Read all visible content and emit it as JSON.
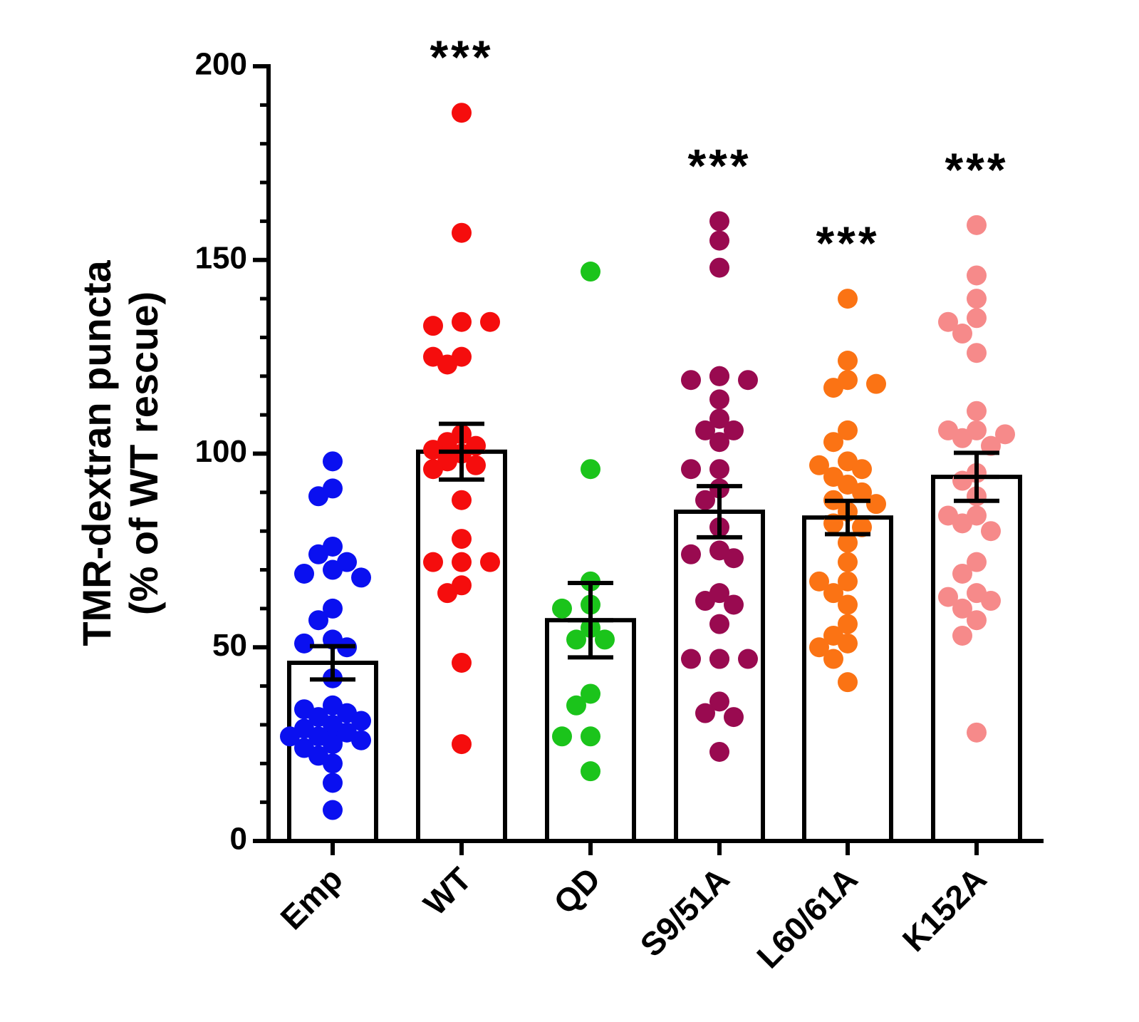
{
  "chart_data": {
    "type": "bar",
    "title": "",
    "xlabel": "",
    "ylabel_line1": "TMR-dextran puncta",
    "ylabel_line2": "(% of WT rescue)",
    "ylim": [
      0,
      200
    ],
    "yticks": [
      0,
      50,
      100,
      150,
      200
    ],
    "minor_tick_step": 10,
    "grid": false,
    "legend": "none",
    "categories": [
      "Emp",
      "WT",
      "QD",
      "S9/51A",
      "L60/61A",
      "K152A"
    ],
    "means": [
      46,
      100.5,
      57,
      85,
      83.5,
      94
    ],
    "sem": [
      4.3,
      7.2,
      9.6,
      6.6,
      4.3,
      6.2
    ],
    "significance": [
      "",
      "***",
      "",
      "***",
      "***",
      "***"
    ],
    "colors": [
      "#0a10f0",
      "#f50d0d",
      "#1bc41b",
      "#990a50",
      "#fb7314",
      "#f68a8a"
    ],
    "points": [
      [
        98,
        91,
        89,
        76,
        74,
        72,
        70,
        69,
        68,
        60,
        57,
        52,
        51,
        50,
        42,
        35,
        34,
        33,
        32,
        31,
        30,
        29,
        28,
        27,
        27,
        26,
        26,
        25,
        24,
        22,
        20,
        15,
        8
      ],
      [
        188,
        157,
        134,
        133,
        134,
        125,
        123,
        125,
        105,
        103,
        102,
        101,
        100,
        98,
        97,
        96,
        88,
        78,
        72,
        72,
        72,
        66,
        64,
        46,
        25
      ],
      [
        147,
        96,
        67,
        61,
        60,
        55,
        52,
        52,
        38,
        35,
        27,
        27,
        18
      ],
      [
        160,
        155,
        148,
        120,
        119,
        119,
        120,
        114,
        109,
        106,
        106,
        103,
        96,
        96,
        91,
        88,
        81,
        75,
        74,
        73,
        64,
        62,
        61,
        56,
        47,
        47,
        47,
        47,
        36,
        33,
        32,
        23
      ],
      [
        140,
        124,
        119,
        117,
        118,
        106,
        103,
        98,
        97,
        96,
        94,
        92,
        90,
        88,
        87,
        85,
        82,
        81,
        77,
        72,
        67,
        67,
        64,
        61,
        56,
        53,
        51,
        50,
        47,
        41
      ],
      [
        159,
        146,
        140,
        135,
        134,
        131,
        126,
        111,
        106,
        106,
        105,
        104,
        102,
        95,
        93,
        89,
        84,
        84,
        82,
        80,
        72,
        69,
        64,
        63,
        62,
        60,
        57,
        53,
        28
      ]
    ]
  }
}
